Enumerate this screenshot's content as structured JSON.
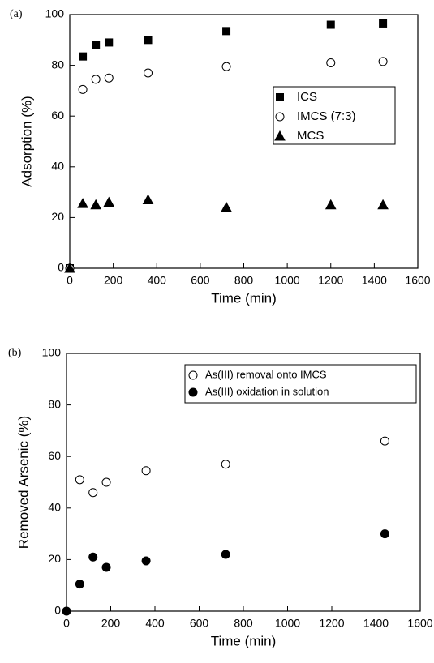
{
  "chart_data": [
    {
      "type": "scatter",
      "panel_label": "(a)",
      "xlabel": "Time (min)",
      "ylabel": "Adsorption (%)",
      "xlim": [
        0,
        1600
      ],
      "ylim": [
        0,
        100
      ],
      "xticks": [
        0,
        200,
        400,
        600,
        800,
        1000,
        1200,
        1400,
        1600
      ],
      "yticks": [
        0,
        20,
        40,
        60,
        80,
        100
      ],
      "legend": "right",
      "series": [
        {
          "name": "ICS",
          "color": "#000000",
          "marker": "square",
          "filled": true,
          "x": [
            0,
            60,
            120,
            180,
            360,
            720,
            1200,
            1440
          ],
          "values": [
            0,
            83.5,
            88,
            89,
            90,
            93.5,
            96,
            96.5
          ]
        },
        {
          "name": "IMCS (7:3)",
          "color": "#000000",
          "marker": "circle",
          "filled": false,
          "x": [
            0,
            60,
            120,
            180,
            360,
            720,
            1200,
            1440
          ],
          "values": [
            0,
            70.5,
            74.5,
            75,
            77,
            79.5,
            81,
            81.5
          ]
        },
        {
          "name": "MCS",
          "color": "#000000",
          "marker": "triangle",
          "filled": true,
          "x": [
            0,
            60,
            120,
            180,
            360,
            720,
            1200,
            1440
          ],
          "values": [
            0,
            25.5,
            25,
            26,
            27,
            24,
            25,
            25
          ]
        }
      ]
    },
    {
      "type": "scatter",
      "panel_label": "(b)",
      "xlabel": "Time (min)",
      "ylabel": "Removed Arsenic (%)",
      "xlim": [
        0,
        1600
      ],
      "ylim": [
        0,
        100
      ],
      "xticks": [
        0,
        200,
        400,
        600,
        800,
        1000,
        1200,
        1400,
        1600
      ],
      "yticks": [
        0,
        20,
        40,
        60,
        80,
        100
      ],
      "legend": "upper right",
      "series": [
        {
          "name": "As(III) removal onto IMCS",
          "color": "#000000",
          "marker": "circle",
          "filled": false,
          "x": [
            60,
            120,
            180,
            360,
            720,
            1440
          ],
          "values": [
            51,
            46,
            50,
            54.5,
            57,
            66
          ]
        },
        {
          "name": "As(III) oxidation in solution",
          "color": "#000000",
          "marker": "circle",
          "filled": true,
          "x": [
            0,
            60,
            120,
            180,
            360,
            720,
            1440
          ],
          "values": [
            0,
            10.5,
            21,
            17,
            19.5,
            22,
            30
          ]
        }
      ]
    }
  ]
}
